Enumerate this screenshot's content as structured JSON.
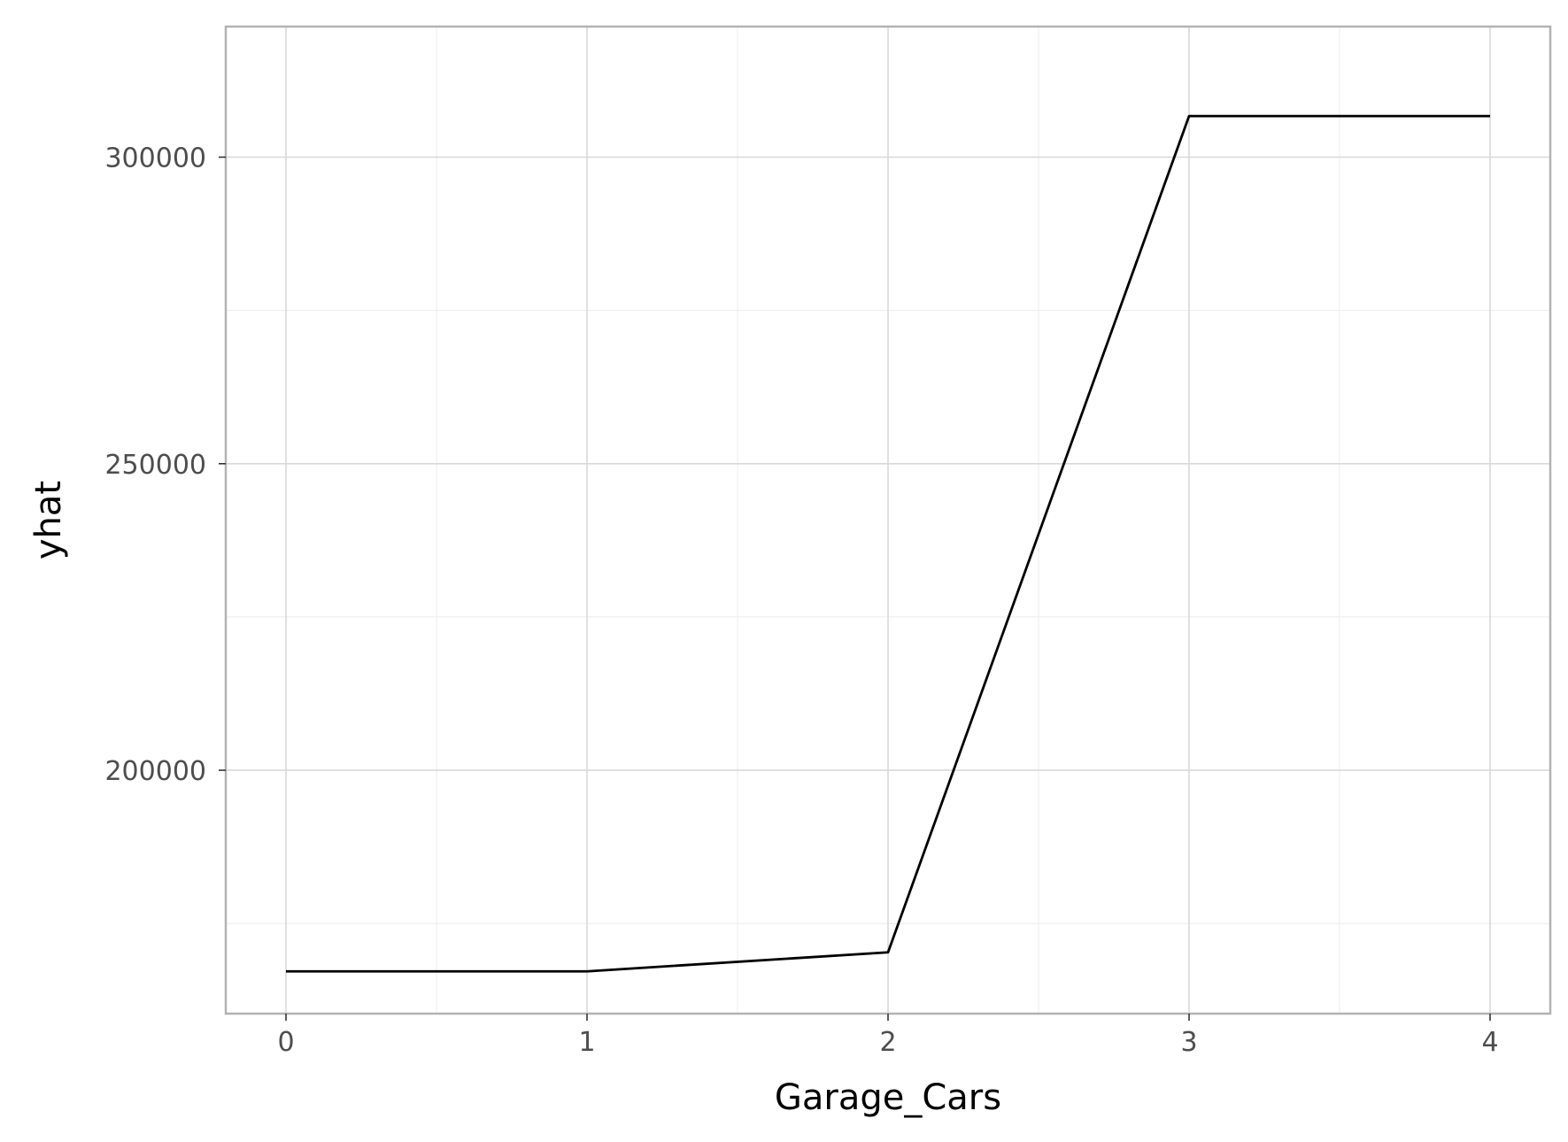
{
  "chart_data": {
    "type": "line",
    "title": "",
    "xlabel": "Garage_Cars",
    "ylabel": "yhat",
    "x": [
      0,
      1,
      2,
      3,
      4
    ],
    "series": [
      {
        "values": [
          167200,
          167200,
          170300,
          306700,
          306700
        ]
      }
    ],
    "xlim": [
      -0.2,
      4.2
    ],
    "ylim": [
      160300,
      321300
    ],
    "x_ticks": [
      0,
      1,
      2,
      3,
      4
    ],
    "x_tick_labels": [
      "0",
      "1",
      "2",
      "3",
      "4"
    ],
    "x_minor_ticks": [
      0.5,
      1.5,
      2.5,
      3.5
    ],
    "y_ticks": [
      200000,
      250000,
      300000
    ],
    "y_tick_labels": [
      "200000",
      "250000",
      "300000"
    ],
    "y_minor_ticks": [
      175000,
      225000,
      275000
    ],
    "grid": true,
    "legend": "none",
    "colors": {
      "line": "#000000",
      "grid_major": "#d9d9d9",
      "grid_minor": "#ececec",
      "panel_border": "#b3b3b3",
      "tick_text": "#4d4d4d"
    }
  }
}
